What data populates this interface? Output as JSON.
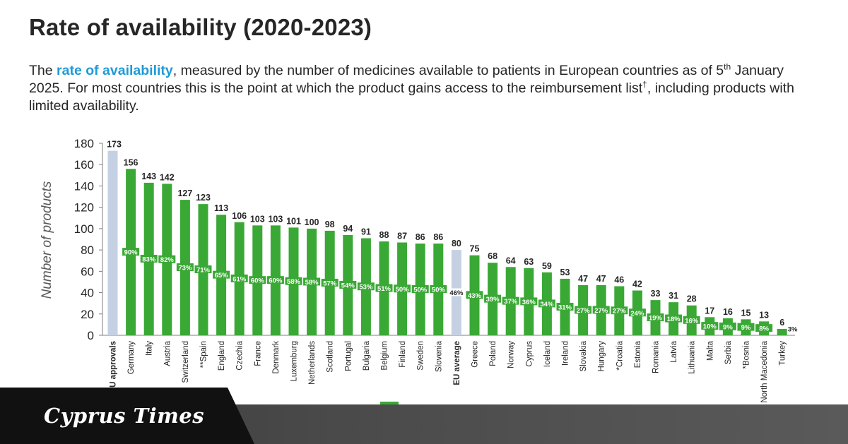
{
  "title": "Rate of availability (2020-2023)",
  "subtitle": {
    "pre": "The ",
    "highlight": "rate of availability",
    "mid": ", measured by the number of medicines available to patients in European countries as of 5",
    "sup1": "th",
    "mid2": " January 2025. For most countries this is the point at which the product gains access to the reimbursement list",
    "sup2": "†",
    "post": ", including products with limited availability."
  },
  "brand": "Cyprus Times",
  "colors": {
    "country": "#3aa835",
    "reference": "#c5d0e3",
    "highlight": "#1f9bd7",
    "pct_label": "#3aa835"
  },
  "chart_data": {
    "type": "bar",
    "ylabel": "Number of products",
    "ylim": [
      0,
      180
    ],
    "yticks": [
      0,
      20,
      40,
      60,
      80,
      100,
      120,
      140,
      160,
      180
    ],
    "categories": [
      "EU approvals",
      "Germany",
      "Italy",
      "Austria",
      "Switzerland",
      "**Spain",
      "England",
      "Czechia",
      "France",
      "Denmark",
      "Luxemburg",
      "Netherlands",
      "Scotland",
      "Portugal",
      "Bulgaria",
      "Belgium",
      "Finland",
      "Sweden",
      "Slovenia",
      "EU average",
      "Greece",
      "Poland",
      "Norway",
      "Cyprus",
      "Iceland",
      "Ireland",
      "Slovakia",
      "Hungary",
      "*Croatia",
      "Estonia",
      "Romania",
      "Latvia",
      "Lithuania",
      "Malta",
      "Serbia",
      "*Bosnia",
      "North Macedonia",
      "Turkey"
    ],
    "values": [
      173,
      156,
      143,
      142,
      127,
      123,
      113,
      106,
      103,
      103,
      101,
      100,
      98,
      94,
      91,
      88,
      87,
      86,
      86,
      80,
      75,
      68,
      64,
      63,
      59,
      53,
      47,
      47,
      46,
      42,
      33,
      31,
      28,
      17,
      16,
      15,
      13,
      6
    ],
    "percent_labels": [
      "",
      "90%",
      "83%",
      "82%",
      "73%",
      "71%",
      "65%",
      "61%",
      "60%",
      "60%",
      "58%",
      "58%",
      "57%",
      "54%",
      "53%",
      "51%",
      "50%",
      "50%",
      "50%",
      "46%",
      "43%",
      "39%",
      "37%",
      "36%",
      "34%",
      "31%",
      "27%",
      "27%",
      "27%",
      "24%",
      "19%",
      "18%",
      "16%",
      "10%",
      "9%",
      "9%",
      "8%",
      "3%"
    ],
    "reference_categories": [
      "EU approvals",
      "EU average"
    ],
    "bold_categories": [
      "EU approvals",
      "EU average"
    ]
  }
}
